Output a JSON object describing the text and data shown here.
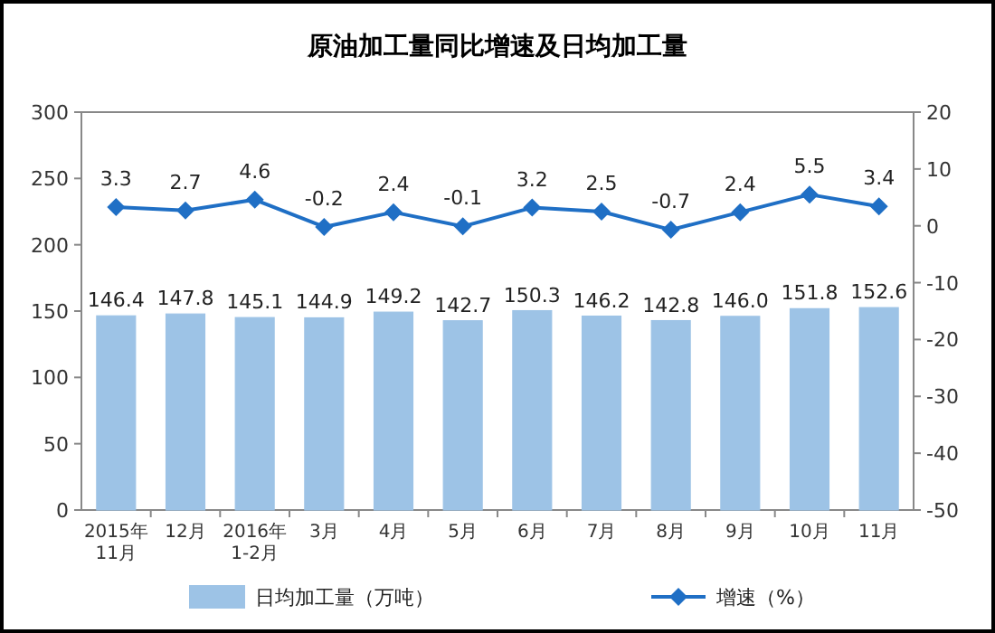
{
  "chart_data": {
    "type": "bar",
    "title": "原油加工量同比增速及日均加工量",
    "categories": [
      "2015年\n11月",
      "12月",
      "2016年\n1-2月",
      "3月",
      "4月",
      "5月",
      "6月",
      "7月",
      "8月",
      "9月",
      "10月",
      "11月"
    ],
    "series": [
      {
        "name": "日均加工量（万吨）",
        "color": "#9dc3e6",
        "values": [
          146.4,
          147.8,
          145.1,
          144.9,
          149.2,
          142.7,
          150.3,
          146.2,
          142.8,
          146.0,
          151.8,
          152.6
        ],
        "value_labels": [
          "146.4",
          "147.8",
          "145.1",
          "144.9",
          "149.2",
          "142.7",
          "150.3",
          "146.2",
          "142.8",
          "146.0",
          "151.8",
          "152.6"
        ]
      },
      {
        "name": "增速（%）",
        "type": "line",
        "axis": "y2",
        "color": "#1f6fc5",
        "marker": "diamond",
        "values": [
          3.3,
          2.7,
          4.6,
          -0.2,
          2.4,
          -0.1,
          3.2,
          2.5,
          -0.7,
          2.4,
          5.5,
          3.4
        ]
      }
    ],
    "ylim": [
      0,
      300
    ],
    "yticks": [
      0,
      50,
      100,
      150,
      200,
      250,
      300
    ],
    "y2lim": [
      -50,
      20
    ],
    "y2ticks": [
      -50,
      -40,
      -30,
      -20,
      -10,
      0,
      10,
      20
    ],
    "data_labels": true,
    "legend": "bottom"
  }
}
